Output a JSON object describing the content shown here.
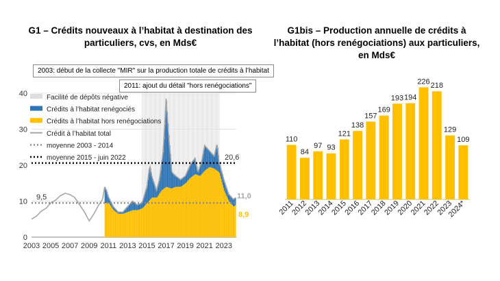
{
  "chart_data": [
    {
      "type": "bar",
      "title": "G1 – Crédits nouveaux à l’habitat à destination des particuliers, cvs, en Mds€",
      "notes": [
        "2003: début de la collecte \"MIR\" sur la production totale de crédits à l’habitat",
        "2011: ajout du détail \"hors renégociations\""
      ],
      "ylim": [
        0,
        40
      ],
      "yticks": [
        "0",
        "10",
        "20",
        "30",
        "40"
      ],
      "xlim": [
        2003,
        2024.3
      ],
      "xticks": [
        "2003",
        "2005",
        "2007",
        "2009",
        "2011",
        "2013",
        "2015",
        "2017",
        "2019",
        "2021",
        "2023"
      ],
      "legend": [
        {
          "label": "Facilité de dépôts négative",
          "color": "#dedede",
          "kind": "box"
        },
        {
          "label": "Crédits à l’habitat renégociés",
          "color": "#2e75b6",
          "kind": "box"
        },
        {
          "label": "Crédits à l’habitat hors renégociations",
          "color": "#ffc000",
          "kind": "box"
        },
        {
          "label": "Crédit à l’habitat total",
          "color": "#a6a6a6",
          "kind": "line"
        },
        {
          "label": "moyenne 2003 - 2014",
          "color": "#8c8c8c",
          "kind": "dots"
        },
        {
          "label": "moyenne 2015 - juin 2022",
          "color": "#000000",
          "kind": "dots"
        }
      ],
      "avg_2003_2014": 9.5,
      "avg_2003_2014_label": "9,5",
      "avg_2015_2022": 20.6,
      "avg_2015_2022_label": "20,6",
      "last_total_label": "11,0",
      "last_hors_label": "8,9",
      "neg_rate_period": [
        2014.5,
        2022.5
      ],
      "total_anchors": [
        [
          2003,
          5
        ],
        [
          2003.5,
          5.8
        ],
        [
          2004,
          7.2
        ],
        [
          2004.5,
          8
        ],
        [
          2005,
          9.5
        ],
        [
          2005.5,
          10.3
        ],
        [
          2006,
          11.5
        ],
        [
          2006.5,
          12.2
        ],
        [
          2007,
          11.8
        ],
        [
          2007.5,
          11
        ],
        [
          2008,
          9
        ],
        [
          2008.5,
          7
        ],
        [
          2009,
          4.5
        ],
        [
          2009.5,
          6.5
        ],
        [
          2010,
          9
        ],
        [
          2010.4,
          10.5
        ],
        [
          2010.6,
          14
        ],
        [
          2010.8,
          13
        ],
        [
          2011,
          11.2
        ],
        [
          2011.5,
          8.5
        ],
        [
          2012,
          7
        ],
        [
          2012.5,
          7
        ],
        [
          2013,
          8.5
        ],
        [
          2013.5,
          10
        ],
        [
          2014,
          9
        ],
        [
          2014.5,
          9.5
        ],
        [
          2015,
          14
        ],
        [
          2015.3,
          20
        ],
        [
          2015.5,
          17
        ],
        [
          2016,
          13
        ],
        [
          2016.3,
          16
        ],
        [
          2016.7,
          24
        ],
        [
          2017,
          38.5
        ],
        [
          2017.3,
          27
        ],
        [
          2017.6,
          18
        ],
        [
          2018,
          17
        ],
        [
          2018.5,
          16
        ],
        [
          2019,
          17
        ],
        [
          2019.5,
          20
        ],
        [
          2020,
          22
        ],
        [
          2020.3,
          18
        ],
        [
          2020.7,
          21
        ],
        [
          2021,
          25.5
        ],
        [
          2021.5,
          24
        ],
        [
          2022,
          22.5
        ],
        [
          2022.3,
          26
        ],
        [
          2022.5,
          21
        ],
        [
          2023,
          16
        ],
        [
          2023.5,
          12
        ],
        [
          2024,
          10.5
        ],
        [
          2024.2,
          11
        ]
      ],
      "hors_anchors": [
        [
          2010.5,
          9.5
        ],
        [
          2011,
          9.5
        ],
        [
          2011.5,
          7.5
        ],
        [
          2012,
          6.5
        ],
        [
          2012.5,
          6.5
        ],
        [
          2013,
          7
        ],
        [
          2013.5,
          7.5
        ],
        [
          2014,
          7.5
        ],
        [
          2014.5,
          8
        ],
        [
          2015,
          9.5
        ],
        [
          2015.5,
          11
        ],
        [
          2016,
          11
        ],
        [
          2016.5,
          13
        ],
        [
          2017,
          14
        ],
        [
          2017.5,
          13.5
        ],
        [
          2018,
          14
        ],
        [
          2018.5,
          14
        ],
        [
          2019,
          15
        ],
        [
          2019.5,
          16.5
        ],
        [
          2020,
          17.5
        ],
        [
          2020.5,
          17
        ],
        [
          2021,
          18.5
        ],
        [
          2021.5,
          19.5
        ],
        [
          2022,
          19
        ],
        [
          2022.5,
          18
        ],
        [
          2023,
          13
        ],
        [
          2023.5,
          10
        ],
        [
          2024,
          8.5
        ],
        [
          2024.2,
          8.9
        ]
      ]
    },
    {
      "type": "bar",
      "title": "G1bis – Production annuelle de crédits à l’habitat (hors renégociations) aux particuliers, en Mds€",
      "categories": [
        "2011",
        "2012",
        "2013",
        "2014",
        "2015",
        "2016",
        "2017",
        "2018",
        "2019",
        "2020",
        "2021",
        "2022",
        "2023",
        "2024*"
      ],
      "values": [
        110,
        84,
        97,
        93,
        121,
        138,
        157,
        169,
        193,
        194,
        226,
        218,
        129,
        109
      ],
      "ylim": [
        0,
        250
      ],
      "color": "#ffc000"
    }
  ]
}
